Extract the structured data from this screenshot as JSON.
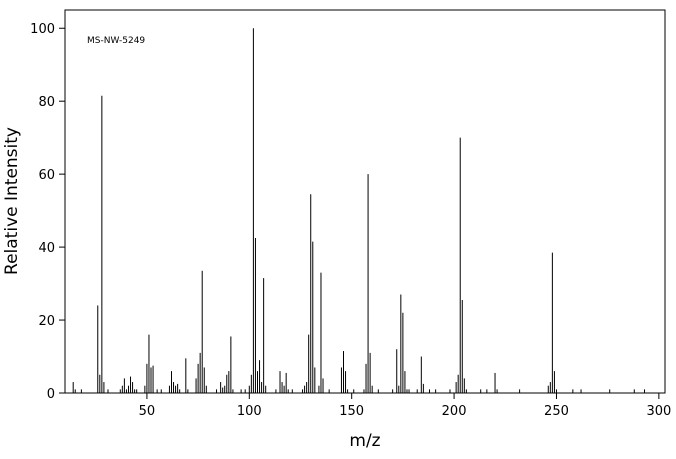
{
  "chart_data": {
    "type": "stick",
    "annotation": "MS-NW-5249",
    "x_label": "m/z",
    "y_label": "Relative Intensity",
    "x": [
      14,
      15,
      18,
      26,
      27,
      28,
      29,
      31,
      37,
      38,
      39,
      40,
      41,
      42,
      43,
      44,
      45,
      49,
      50,
      51,
      52,
      53,
      55,
      57,
      61,
      62,
      63,
      64,
      65,
      66,
      69,
      70,
      74,
      75,
      76,
      77,
      78,
      79,
      84,
      86,
      87,
      88,
      89,
      90,
      91,
      92,
      96,
      98,
      100,
      101,
      102,
      103,
      104,
      105,
      106,
      107,
      108,
      113,
      115,
      116,
      117,
      118,
      119,
      121,
      126,
      127,
      128,
      129,
      130,
      131,
      132,
      134,
      135,
      136,
      139,
      145,
      146,
      147,
      148,
      151,
      156,
      157,
      158,
      159,
      160,
      163,
      170,
      172,
      173,
      174,
      175,
      176,
      177,
      178,
      182,
      184,
      185,
      188,
      191,
      198,
      201,
      202,
      203,
      204,
      205,
      206,
      213,
      216,
      220,
      221,
      232,
      246,
      247,
      248,
      249,
      250,
      258,
      262,
      276,
      288,
      293
    ],
    "values": [
      3,
      1,
      1,
      24,
      5,
      81.5,
      3,
      1,
      1,
      2,
      4,
      1,
      2,
      4.5,
      3,
      1,
      1,
      2,
      8,
      16,
      7,
      7.5,
      1,
      1,
      2,
      6,
      3,
      2,
      2.5,
      1,
      9.5,
      1,
      4,
      8,
      11,
      33.5,
      7,
      2,
      1,
      3,
      1.5,
      2,
      5,
      6,
      15.5,
      1,
      1,
      1,
      2,
      5,
      100,
      42.5,
      6,
      9,
      3,
      31.5,
      2,
      1,
      6,
      3,
      2,
      5.5,
      1,
      1,
      1,
      2,
      3,
      16,
      54.5,
      41.5,
      7,
      2,
      33,
      4,
      1,
      7,
      11.5,
      6,
      1,
      1,
      1,
      8,
      60,
      11,
      2,
      1,
      1,
      12,
      2,
      27,
      22,
      6,
      1,
      1,
      1,
      10,
      2.5,
      1,
      1,
      1,
      3,
      5,
      70,
      25.5,
      4,
      1,
      1,
      1,
      5.5,
      1,
      1,
      2,
      3,
      38.5,
      6,
      1,
      1,
      1,
      1,
      1,
      1
    ],
    "color": "#000000",
    "xlim": [
      10,
      303
    ],
    "xticks": [
      50,
      100,
      150,
      200,
      250,
      300
    ],
    "ylim": [
      0,
      105
    ],
    "yticks": [
      0,
      20,
      40,
      60,
      80,
      100
    ]
  }
}
